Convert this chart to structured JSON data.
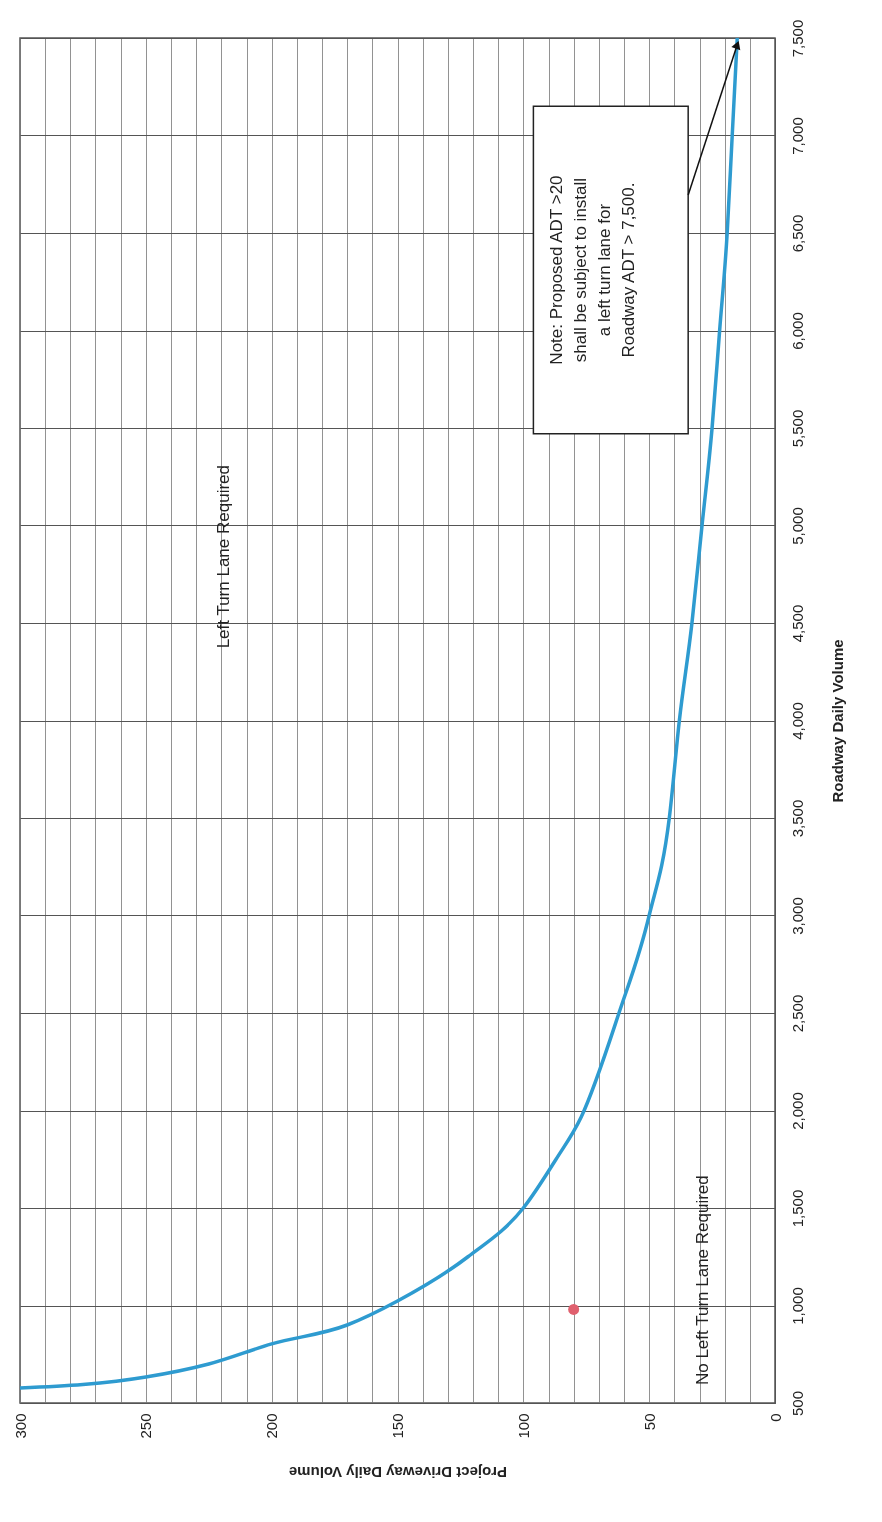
{
  "chart_data": {
    "type": "line",
    "xlabel": "Project Driveway Daily Volume",
    "ylabel": "Roadway Daily Volume",
    "xlim": [
      300,
      0
    ],
    "xticks": [
      300,
      {
        "value": 290,
        "label": null
      },
      {
        "value": 280,
        "label": null
      },
      {
        "value": 270,
        "label": null
      },
      {
        "value": 260,
        "label": null
      },
      250,
      {
        "value": 240,
        "label": null
      },
      {
        "value": 230,
        "label": null
      },
      {
        "value": 220,
        "label": null
      },
      {
        "value": 210,
        "label": null
      },
      200,
      {
        "value": 190,
        "label": null
      },
      {
        "value": 180,
        "label": null
      },
      {
        "value": 170,
        "label": null
      },
      {
        "value": 160,
        "label": null
      },
      150,
      {
        "value": 140,
        "label": null
      },
      {
        "value": 130,
        "label": null
      },
      {
        "value": 120,
        "label": null
      },
      {
        "value": 110,
        "label": null
      },
      100,
      {
        "value": 90,
        "label": null
      },
      {
        "value": 80,
        "label": null
      },
      {
        "value": 70,
        "label": null
      },
      {
        "value": 60,
        "label": null
      },
      50,
      {
        "value": 40,
        "label": null
      },
      {
        "value": 30,
        "label": null
      },
      {
        "value": 20,
        "label": null
      },
      {
        "value": 10,
        "label": null
      },
      0
    ],
    "ylim": [
      500,
      7500
    ],
    "yticks": [
      500,
      {
        "value": 1000,
        "label": "1,000"
      },
      {
        "value": 1500,
        "label": "1,500"
      },
      {
        "value": 2000,
        "label": "2,000"
      },
      {
        "value": 2500,
        "label": "2,500"
      },
      {
        "value": 3000,
        "label": "3,000"
      },
      {
        "value": 3500,
        "label": "3,500"
      },
      {
        "value": 4000,
        "label": "4,000"
      },
      {
        "value": 4500,
        "label": "4,500"
      },
      {
        "value": 5000,
        "label": "5,000"
      },
      {
        "value": 5500,
        "label": "5,500"
      },
      {
        "value": 6000,
        "label": "6,000"
      },
      {
        "value": 6500,
        "label": "6,500"
      },
      {
        "value": 7000,
        "label": "7,000"
      },
      {
        "value": 7500,
        "label": "7,500"
      }
    ],
    "grid": true,
    "series": [
      {
        "color": "#2e9bd0",
        "x": [
          300,
          250,
          225,
          200,
          170,
          150,
          122,
          100,
          87,
          77,
          62,
          50,
          42,
          38,
          33,
          29,
          25,
          22,
          19,
          17,
          15
        ],
        "values": [
          577,
          633,
          700,
          803,
          900,
          1023,
          1250,
          1500,
          1750,
          1967,
          2500,
          3000,
          3500,
          4000,
          4500,
          5000,
          5500,
          6000,
          6500,
          7000,
          7500
        ]
      },
      {
        "type": "scatter",
        "color": "#e0606e",
        "x": [
          80
        ],
        "values": [
          980
        ],
        "marker": "circle"
      }
    ],
    "annotations": [
      "Left Turn Lane Required",
      "No Left Turn Lane Required",
      "Note:  Proposed ADT >20\nshall be subject to install\na left turn lane for\nRoadway ADT > 7,500."
    ]
  }
}
